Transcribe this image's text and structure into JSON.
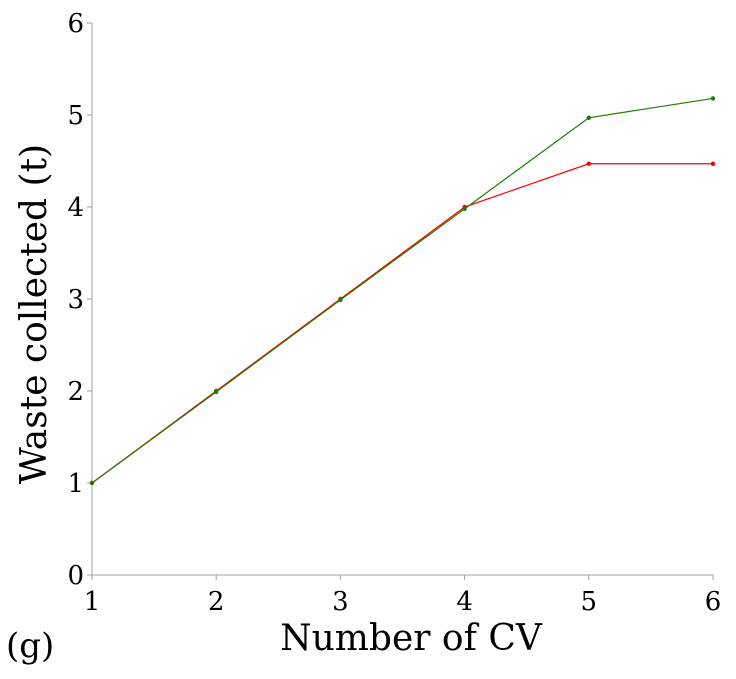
{
  "panel_label": "(g)",
  "chart_data": {
    "type": "line",
    "xlabel": "Number of CV",
    "ylabel": "Waste collected (t)",
    "x": [
      1,
      2,
      3,
      4,
      5,
      6
    ],
    "xlim": [
      1,
      6
    ],
    "ylim": [
      0,
      6
    ],
    "xticks": [
      "1",
      "2",
      "3",
      "4",
      "5",
      "6"
    ],
    "yticks": [
      "0",
      "1",
      "2",
      "3",
      "4",
      "5",
      "6"
    ],
    "grid": false,
    "legend": "none",
    "series": [
      {
        "color": "#ff0000",
        "values": [
          1.0,
          2.0,
          3.0,
          4.0,
          4.47,
          4.47
        ]
      },
      {
        "color": "#1a7f00",
        "values": [
          1.0,
          1.99,
          2.99,
          3.98,
          4.97,
          5.18
        ]
      }
    ]
  }
}
